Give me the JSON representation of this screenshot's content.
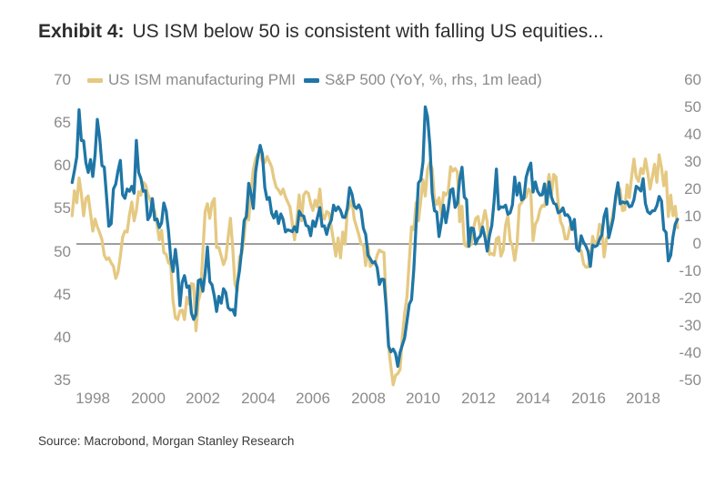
{
  "title": {
    "prefix": "Exhibit 4:",
    "text": "US ISM below 50 is consistent with falling US equities..."
  },
  "source": "Source: Macrobond, Morgan Stanley Research",
  "colors": {
    "ism_line": "#E5C982",
    "spx_line": "#1F76A6",
    "zero_line": "#7F7F7F",
    "axis_text": "#8b8b8b",
    "title_text": "#2d2d2d"
  },
  "chart_data": {
    "type": "line",
    "title": "Exhibit 4: US ISM below 50 is consistent with falling US equities...",
    "x_start": {
      "year": 1997,
      "month": 4
    },
    "frequency": "monthly",
    "x_axis": {
      "labels": [
        "1998",
        "2000",
        "2002",
        "2004",
        "2006",
        "2008",
        "2010",
        "2012",
        "2014",
        "2016",
        "2018"
      ]
    },
    "left_axis": {
      "min": 35,
      "max": 70,
      "ticks": [
        70,
        65,
        60,
        55,
        50,
        45,
        40,
        35
      ]
    },
    "right_axis": {
      "min": -50,
      "max": 60,
      "ticks": [
        60,
        50,
        40,
        30,
        20,
        10,
        0,
        -10,
        -20,
        -30,
        -40,
        -50
      ]
    },
    "zero_line": {
      "axis": "right",
      "value": 0,
      "color": "#7F7F7F"
    },
    "legend_position": "top",
    "grid": "none (single horizontal reference line at right-axis 0)",
    "series": [
      {
        "id": "ism",
        "name": "US ISM manufacturing PMI",
        "axis": "left",
        "color": "#E5C982",
        "values": [
          54.2,
          57.1,
          55.7,
          58.6,
          56.8,
          54.2,
          56.2,
          56.5,
          54.5,
          52.4,
          53.8,
          52.9,
          52.2,
          51.4,
          49.6,
          49.1,
          49.3,
          48.7,
          48.3,
          46.9,
          47.6,
          49.5,
          51.7,
          52.4,
          52.3,
          54.3,
          55.8,
          53.6,
          54.8,
          57.0,
          56.6,
          58.1,
          57.8,
          56.7,
          56.1,
          55.3,
          54.7,
          53.2,
          51.4,
          52.5,
          49.9,
          49.7,
          48.7,
          48.5,
          44.3,
          42.3,
          42.1,
          43.1,
          43.2,
          42.1,
          44.7,
          43.9,
          46.3,
          46.2,
          40.8,
          44.2,
          45.3,
          49.9,
          54.7,
          55.6,
          53.9,
          55.7,
          56.2,
          50.5,
          50.5,
          49.5,
          48.5,
          49.2,
          51.6,
          53.9,
          50.5,
          46.2,
          45.4,
          49.4,
          49.8,
          51.8,
          54.7,
          53.7,
          57.0,
          59.6,
          60.8,
          61.4,
          61.4,
          60.5,
          60.4,
          61.1,
          60.5,
          59.9,
          58.5,
          57.5,
          57.2,
          56.7,
          57.3,
          56.4,
          55.8,
          55.2,
          53.3,
          51.4,
          53.8,
          56.6,
          53.6,
          56.6,
          57.0,
          56.8,
          55.6,
          54.8,
          56.0,
          55.2,
          57.3,
          54.4,
          53.8,
          54.7,
          54.5,
          52.9,
          51.2,
          49.5,
          51.6,
          49.3,
          52.3,
          50.9,
          54.7,
          55.3,
          56.0,
          53.8,
          52.9,
          52.0,
          50.9,
          50.8,
          48.4,
          50.7,
          48.3,
          48.6,
          48.6,
          49.6,
          50.2,
          50.0,
          49.9,
          43.5,
          38.9,
          36.6,
          34.5,
          35.6,
          35.8,
          36.3,
          40.1,
          42.8,
          44.8,
          48.9,
          52.9,
          52.6,
          55.7,
          53.6,
          55.9,
          58.4,
          56.5,
          59.6,
          60.4,
          59.7,
          56.2,
          55.5,
          56.3,
          54.4,
          56.9,
          56.6,
          57.0,
          59.9,
          59.4,
          59.7,
          59.3,
          53.5,
          55.3,
          50.9,
          50.6,
          51.6,
          50.8,
          52.7,
          53.9,
          54.1,
          52.4,
          53.4,
          54.8,
          53.5,
          49.7,
          49.8,
          49.6,
          51.5,
          51.7,
          49.5,
          50.2,
          53.1,
          54.2,
          51.3,
          50.7,
          49.0,
          50.9,
          55.4,
          55.7,
          56.2,
          56.4,
          57.3,
          57.0,
          51.3,
          53.2,
          53.7,
          54.9,
          55.4,
          55.3,
          57.1,
          59.0,
          56.6,
          59.0,
          58.7,
          55.5,
          53.5,
          52.9,
          51.5,
          51.5,
          52.8,
          53.5,
          52.7,
          51.1,
          50.2,
          50.1,
          48.6,
          48.2,
          48.2,
          49.5,
          51.8,
          50.8,
          51.3,
          53.2,
          52.6,
          49.4,
          51.5,
          51.9,
          53.2,
          54.7,
          56.0,
          57.7,
          57.2,
          54.8,
          54.9,
          57.8,
          56.3,
          58.8,
          60.8,
          58.7,
          58.2,
          59.7,
          59.1,
          60.8,
          59.3,
          57.3,
          58.7,
          60.2,
          58.1,
          61.3,
          59.8,
          57.7,
          59.3,
          54.1,
          56.6,
          54.2,
          55.3,
          52.8
        ]
      },
      {
        "id": "spx",
        "name": "S&P 500 (YoY, %, rhs, 1m lead)",
        "axis": "right",
        "color": "#1F76A6",
        "values": [
          22.5,
          26.8,
          31.9,
          49.1,
          37.9,
          37.8,
          29.8,
          26.2,
          30.9,
          24.7,
          32.6,
          45.6,
          38.8,
          28.7,
          28.1,
          17.5,
          6.5,
          7.4,
          20.1,
          21.9,
          26.7,
          30.6,
          18.0,
          16.7,
          20.1,
          19.3,
          21.1,
          18.6,
          37.9,
          26.2,
          24.0,
          19.3,
          19.5,
          8.9,
          10.3,
          16.6,
          8.8,
          9.1,
          6.0,
          7.7,
          15.0,
          12.0,
          4.8,
          -5.3,
          -10.1,
          -2.0,
          -9.2,
          -22.6,
          -14.0,
          -11.6,
          -15.9,
          -15.4,
          -25.3,
          -27.6,
          -25.8,
          -13.4,
          -13.0,
          -17.3,
          -10.7,
          -1.1,
          -13.8,
          -15.0,
          -19.1,
          -24.7,
          -19.2,
          -21.7,
          -16.4,
          -17.8,
          -23.3,
          -24.2,
          -24.0,
          -26.1,
          -14.9,
          -9.7,
          -1.5,
          8.6,
          10.0,
          22.2,
          18.6,
          13.0,
          26.4,
          32.1,
          36.1,
          32.8,
          20.7,
          16.3,
          17.0,
          11.3,
          9.5,
          11.9,
          7.5,
          11.0,
          9.0,
          4.4,
          5.2,
          4.9,
          4.5,
          6.3,
          4.4,
          12.0,
          10.5,
          10.2,
          6.8,
          6.4,
          3.0,
          8.4,
          6.4,
          9.7,
          13.3,
          6.5,
          6.6,
          3.5,
          6.9,
          8.7,
          14.2,
          12.2,
          13.6,
          12.3,
          9.8,
          9.7,
          13.0,
          20.6,
          18.3,
          13.9,
          13.0,
          14.3,
          12.4,
          5.7,
          3.5,
          -4.1,
          -5.4,
          -6.9,
          -6.5,
          -8.6,
          -14.8,
          -12.9,
          -13.0,
          -23.7,
          -37.4,
          -39.5,
          -38.5,
          -40.1,
          -44.8,
          -39.7,
          -37.0,
          -34.4,
          -28.2,
          -22.1,
          -20.4,
          -9.3,
          6.9,
          22.3,
          23.5,
          30.0,
          50.2,
          46.5,
          36.0,
          18.5,
          12.2,
          11.7,
          2.7,
          7.9,
          14.2,
          7.8,
          12.8,
          19.7,
          20.2,
          13.4,
          14.9,
          23.5,
          28.1,
          17.2,
          16.2,
          -0.9,
          5.9,
          5.6,
          0.0,
          2.0,
          2.9,
          6.2,
          2.5,
          -2.6,
          3.1,
          6.7,
          15.4,
          27.4,
          12.7,
          13.6,
          13.4,
          14.2,
          10.9,
          11.4,
          14.3,
          24.5,
          17.9,
          22.3,
          16.1,
          16.7,
          24.4,
          27.5,
          29.6,
          19.0,
          22.7,
          19.3,
          17.9,
          18.0,
          22.0,
          14.5,
          22.7,
          17.2,
          14.9,
          14.5,
          11.4,
          11.9,
          13.2,
          10.5,
          10.7,
          9.5,
          5.3,
          9.0,
          -1.5,
          -2.6,
          3.0,
          0.6,
          -0.7,
          -2.8,
          -8.2,
          -0.4,
          -1.0,
          -0.5,
          1.7,
          3.3,
          10.1,
          12.9,
          2.3,
          5.7,
          9.5,
          17.5,
          22.4,
          14.7,
          15.4,
          15.0,
          15.4,
          13.6,
          13.9,
          16.2,
          21.1,
          20.4,
          19.4,
          23.9,
          14.8,
          11.8,
          11.1,
          12.1,
          12.2,
          14.0,
          17.4,
          15.7,
          5.3,
          4.2,
          -6.2,
          -4.2,
          2.6,
          7.3,
          9.0
        ]
      }
    ]
  }
}
